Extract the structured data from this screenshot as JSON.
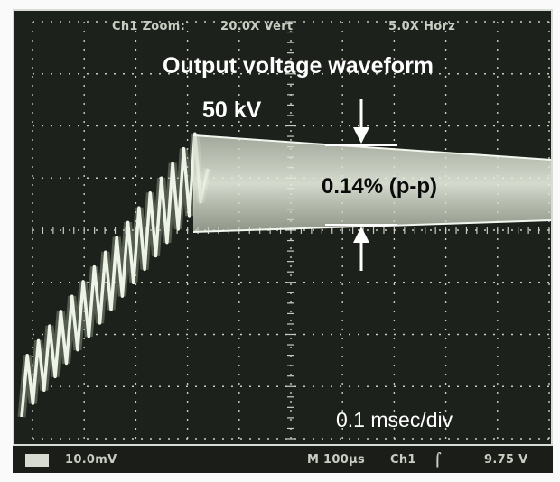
{
  "scope": {
    "zoom_readout": {
      "channel": "Ch1 Zoom:",
      "vertical": "20.0X Vert",
      "horizontal": "5.0X Horz"
    },
    "status_bar": {
      "ch1_scale": "10.0mV",
      "timebase": "M 100µs",
      "trigger_source": "Ch1",
      "trigger_level": "9.75 V"
    }
  },
  "annotations": {
    "title": "Output voltage waveform",
    "voltage_level": "50 kV",
    "ripple": "0.14% (p-p)",
    "time_scale": "0.1 msec/div"
  },
  "colors": {
    "screen_bg": "#1d211b",
    "trace": "#e9efe3",
    "grid": "#c9cdc2",
    "annotation": "#ffffff"
  }
}
